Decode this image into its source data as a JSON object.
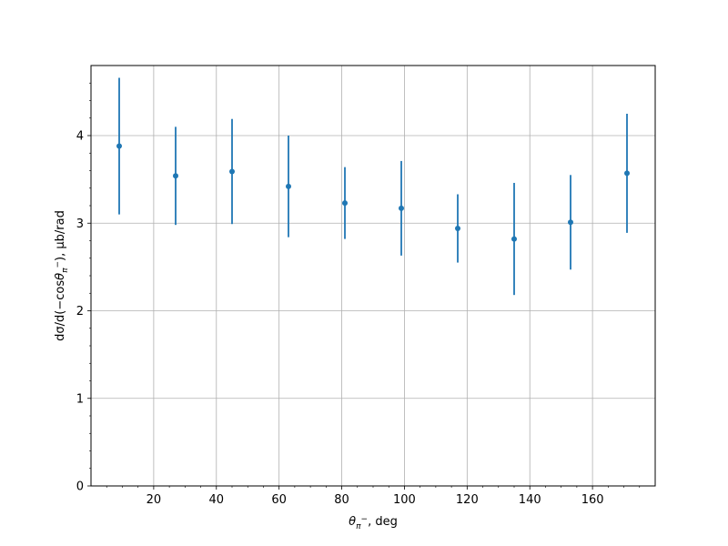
{
  "chart_data": {
    "type": "scatter",
    "title": "",
    "xlabel": "θ_{π⁻}, deg",
    "xlabel_parts": {
      "theta": "θ",
      "sub": "π",
      "sup": "−",
      "rest": ", deg"
    },
    "ylabel": "dσ/d(−cosθ_{π⁻}), μb/rad",
    "ylabel_parts": {
      "main": "dσ/d(−cos",
      "theta": "θ",
      "sub": "π",
      "sup": "−",
      "rest": "), μb/rad"
    },
    "xlim": [
      0,
      180
    ],
    "ylim": [
      0,
      4.8
    ],
    "x_ticks": [
      20,
      40,
      60,
      80,
      100,
      120,
      140,
      160
    ],
    "x_minor_step": 5,
    "y_ticks": [
      0,
      1,
      2,
      3,
      4
    ],
    "y_minor_step": 0.2,
    "grid": true,
    "legend": "none",
    "color": "#1f77b4",
    "series": [
      {
        "x": [
          9,
          27,
          45,
          63,
          81,
          99,
          117,
          135,
          153,
          171
        ],
        "y": [
          3.88,
          3.54,
          3.59,
          3.42,
          3.23,
          3.17,
          2.94,
          2.82,
          3.01,
          3.57
        ],
        "yerr": [
          0.78,
          0.56,
          0.6,
          0.58,
          0.41,
          0.54,
          0.39,
          0.64,
          0.54,
          0.68
        ]
      }
    ]
  }
}
